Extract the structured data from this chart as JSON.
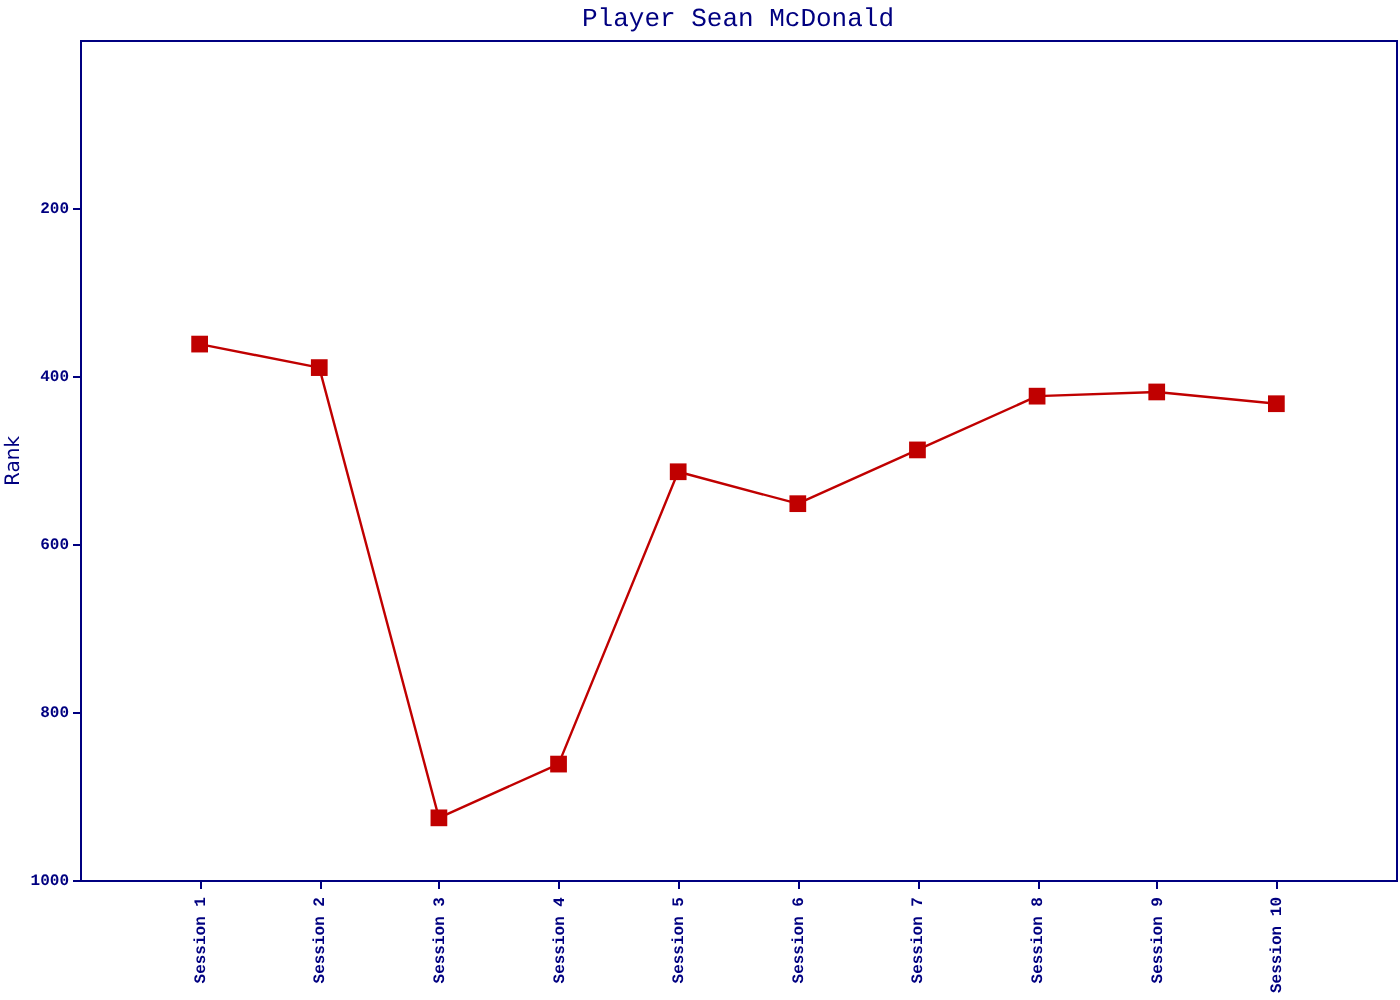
{
  "chart_data": {
    "type": "line",
    "title": "Player Sean McDonald",
    "ylabel": "Rank",
    "categories": [
      "Session 1",
      "Session 2",
      "Session 3",
      "Session 4",
      "Session 5",
      "Session 6",
      "Session 7",
      "Session 8",
      "Session 9",
      "Session 10"
    ],
    "series": [
      {
        "color": "#c00000",
        "values": [
          362,
          390,
          926,
          862,
          514,
          552,
          488,
          424,
          419,
          433
        ]
      }
    ],
    "ylim": [
      1000,
      0
    ],
    "yticks": [
      200,
      400,
      600,
      800,
      1000
    ],
    "grid": false,
    "marker": "square",
    "line_style": "solid"
  }
}
